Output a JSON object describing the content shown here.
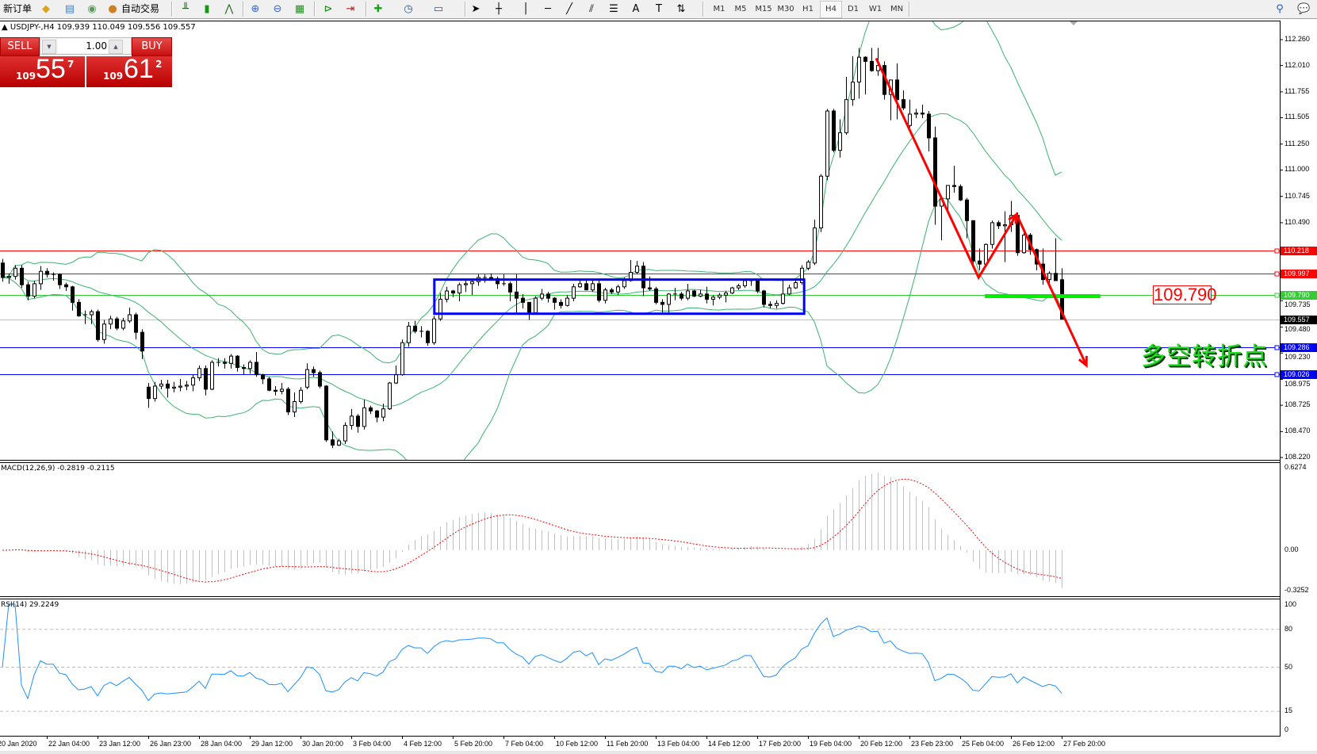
{
  "toolbar": {
    "new_order": "新订单",
    "auto_trade": "自动交易",
    "icons": [
      "market-watch-icon",
      "navigator-icon",
      "signals-icon",
      "bar-chart-icon",
      "candlestick-icon",
      "line-chart-icon",
      "zoom-in-icon",
      "zoom-out-icon",
      "tile-windows-icon",
      "chart-shift-icon",
      "autoscroll-icon",
      "indicators-icon",
      "periods-icon",
      "templates-icon",
      "cursor-icon",
      "crosshair-icon",
      "vertical-line-icon",
      "horizontal-line-icon",
      "trendline-icon",
      "equidistant-channel-icon",
      "fibonacci-icon",
      "text-icon",
      "text-label-icon",
      "arrows-icon"
    ],
    "timeframes": [
      "M1",
      "M5",
      "M15",
      "M30",
      "H1",
      "H4",
      "D1",
      "W1",
      "MN"
    ],
    "active_timeframe": "H4"
  },
  "symbol_line": "USDJPY-,H4  109.939 110.049 109.556 109.557",
  "trade_panel": {
    "sell_label": "SELL",
    "buy_label": "BUY",
    "lot": "1.00",
    "sell_price": {
      "prefix": "109",
      "big": "55",
      "sup": "7"
    },
    "buy_price": {
      "prefix": "109",
      "big": "61",
      "sup": "2"
    }
  },
  "chart": {
    "price_range": [
      108.22,
      112.26
    ],
    "price_axis_labels": [
      "112.260",
      "112.010",
      "111.755",
      "111.505",
      "111.250",
      "111.000",
      "110.745",
      "110.490",
      "109.735",
      "109.480",
      "109.230",
      "108.975",
      "108.725",
      "108.470",
      "108.220"
    ],
    "levels": [
      {
        "price": 110.218,
        "label": "110.218",
        "color": "#ff0000"
      },
      {
        "price": 109.997,
        "label": "109.997",
        "color": "#ff0000"
      },
      {
        "price": 109.79,
        "label": "109.790",
        "color": "#32cd32"
      },
      {
        "price": 109.557,
        "label": "109.557",
        "color": "#c0c0c0",
        "marker_color": "#000000"
      },
      {
        "price": 109.286,
        "label": "109.286",
        "color": "#0000ff"
      },
      {
        "price": 109.026,
        "label": "109.026",
        "color": "#0000ff"
      }
    ],
    "range_box": {
      "from_bar": 68.1,
      "to_bar": 126.4,
      "top": 109.94,
      "bottom": 109.61,
      "color": "#0000ff"
    },
    "zigzag": {
      "points": [
        [
          137.75,
          112.08
        ],
        [
          153.9,
          109.96
        ],
        [
          159.9,
          110.57
        ],
        [
          170.9,
          109.11
        ]
      ],
      "color": "#ff0000"
    },
    "support_segment": {
      "from_bar": 154.9,
      "to_bar": 173.1,
      "price": 109.78,
      "color": "#00ee00"
    },
    "price_label": "109.790",
    "annotation": "多空转折点",
    "colors": {
      "bollinger": "#3cb371",
      "bull_body": "#ffffff",
      "bear_body": "#000000",
      "outline": "#000000"
    },
    "bollinger": {
      "period": 20,
      "deviation": 2
    },
    "candles": [
      [
        110.1,
        110.14,
        109.92,
        109.96
      ],
      [
        109.96,
        110.0,
        109.9,
        109.97
      ],
      [
        109.97,
        110.08,
        109.94,
        110.05
      ],
      [
        110.05,
        110.08,
        109.86,
        109.89
      ],
      [
        109.89,
        109.92,
        109.74,
        109.78
      ],
      [
        109.78,
        109.93,
        109.76,
        109.9
      ],
      [
        109.9,
        110.07,
        109.84,
        110.02
      ],
      [
        110.02,
        110.05,
        109.96,
        109.99
      ],
      [
        109.99,
        110.01,
        109.93,
        109.99
      ],
      [
        109.99,
        110.0,
        109.85,
        109.89
      ],
      [
        109.89,
        109.91,
        109.83,
        109.87
      ],
      [
        109.87,
        109.88,
        109.64,
        109.72
      ],
      [
        109.72,
        109.75,
        109.58,
        109.59
      ],
      [
        109.6,
        109.64,
        109.51,
        109.6
      ],
      [
        109.6,
        109.65,
        109.51,
        109.63
      ],
      [
        109.63,
        109.65,
        109.34,
        109.36
      ],
      [
        109.36,
        109.55,
        109.32,
        109.51
      ],
      [
        109.51,
        109.59,
        109.46,
        109.56
      ],
      [
        109.56,
        109.58,
        109.45,
        109.47
      ],
      [
        109.47,
        109.57,
        109.45,
        109.54
      ],
      [
        109.54,
        109.67,
        109.52,
        109.6
      ],
      [
        109.6,
        109.62,
        109.36,
        109.43
      ],
      [
        109.43,
        109.46,
        109.17,
        109.25
      ],
      [
        108.9,
        108.94,
        108.7,
        108.79
      ],
      [
        108.79,
        108.95,
        108.76,
        108.91
      ],
      [
        108.91,
        108.97,
        108.88,
        108.93
      ],
      [
        108.93,
        108.97,
        108.8,
        108.89
      ],
      [
        108.89,
        108.95,
        108.85,
        108.9
      ],
      [
        108.9,
        108.98,
        108.86,
        108.91
      ],
      [
        108.91,
        108.96,
        108.87,
        108.92
      ],
      [
        108.92,
        109.02,
        108.86,
        108.99
      ],
      [
        108.99,
        109.11,
        108.96,
        109.08
      ],
      [
        109.08,
        109.11,
        108.82,
        108.88
      ],
      [
        108.88,
        109.16,
        108.87,
        109.14
      ],
      [
        109.14,
        109.18,
        109.1,
        109.14
      ],
      [
        109.14,
        109.18,
        109.08,
        109.13
      ],
      [
        109.13,
        109.22,
        109.08,
        109.2
      ],
      [
        109.2,
        109.21,
        109.05,
        109.09
      ],
      [
        109.09,
        109.12,
        109.02,
        109.08
      ],
      [
        109.08,
        109.16,
        109.03,
        109.14
      ],
      [
        109.14,
        109.24,
        109.0,
        109.02
      ],
      [
        109.02,
        109.03,
        108.93,
        108.98
      ],
      [
        108.98,
        109.0,
        108.86,
        108.87
      ],
      [
        108.87,
        108.91,
        108.82,
        108.86
      ],
      [
        108.86,
        108.94,
        108.83,
        108.88
      ],
      [
        108.88,
        108.9,
        108.63,
        108.66
      ],
      [
        108.66,
        108.85,
        108.61,
        108.76
      ],
      [
        108.76,
        108.9,
        108.74,
        108.87
      ],
      [
        108.9,
        109.13,
        108.88,
        109.07
      ],
      [
        109.07,
        109.1,
        109.0,
        109.04
      ],
      [
        109.04,
        109.06,
        108.89,
        108.91
      ],
      [
        108.91,
        108.92,
        108.37,
        108.39
      ],
      [
        108.39,
        108.47,
        108.31,
        108.34
      ],
      [
        108.34,
        108.4,
        108.33,
        108.38
      ],
      [
        108.38,
        108.56,
        108.35,
        108.53
      ],
      [
        108.53,
        108.69,
        108.49,
        108.62
      ],
      [
        108.62,
        108.64,
        108.46,
        108.52
      ],
      [
        108.52,
        108.78,
        108.49,
        108.7
      ],
      [
        108.7,
        108.72,
        108.64,
        108.67
      ],
      [
        108.67,
        108.68,
        108.56,
        108.61
      ],
      [
        108.61,
        108.74,
        108.57,
        108.69
      ],
      [
        108.69,
        108.95,
        108.68,
        108.94
      ],
      [
        108.94,
        109.11,
        108.93,
        109.02
      ],
      [
        109.02,
        109.36,
        109.01,
        109.33
      ],
      [
        109.33,
        109.53,
        109.29,
        109.49
      ],
      [
        109.49,
        109.54,
        109.42,
        109.44
      ],
      [
        109.44,
        109.49,
        109.38,
        109.44
      ],
      [
        109.44,
        109.45,
        109.3,
        109.33
      ],
      [
        109.33,
        109.59,
        109.31,
        109.56
      ],
      [
        109.56,
        109.81,
        109.54,
        109.75
      ],
      [
        109.75,
        109.87,
        109.72,
        109.83
      ],
      [
        109.83,
        109.84,
        109.77,
        109.81
      ],
      [
        109.81,
        109.91,
        109.73,
        109.89
      ],
      [
        109.89,
        109.93,
        109.82,
        109.9
      ],
      [
        109.9,
        109.95,
        109.79,
        109.92
      ],
      [
        109.92,
        109.99,
        109.88,
        109.96
      ],
      [
        109.96,
        109.99,
        109.91,
        109.96
      ],
      [
        109.96,
        110.0,
        109.93,
        109.95
      ],
      [
        109.95,
        109.97,
        109.85,
        109.9
      ],
      [
        109.9,
        109.99,
        109.88,
        109.9
      ],
      [
        109.9,
        109.92,
        109.73,
        109.82
      ],
      [
        109.82,
        109.99,
        109.6,
        109.76
      ],
      [
        109.76,
        109.8,
        109.66,
        109.72
      ],
      [
        109.72,
        109.72,
        109.55,
        109.62
      ],
      [
        109.62,
        109.78,
        109.6,
        109.76
      ],
      [
        109.76,
        109.85,
        109.74,
        109.8
      ],
      [
        109.8,
        109.82,
        109.72,
        109.76
      ],
      [
        109.76,
        109.77,
        109.65,
        109.72
      ],
      [
        109.72,
        109.75,
        109.66,
        109.69
      ],
      [
        109.69,
        109.79,
        109.68,
        109.76
      ],
      [
        109.76,
        109.9,
        109.73,
        109.87
      ],
      [
        109.87,
        109.93,
        109.86,
        109.9
      ],
      [
        109.9,
        109.93,
        109.84,
        109.84
      ],
      [
        109.84,
        109.93,
        109.82,
        109.9
      ],
      [
        109.9,
        109.93,
        109.72,
        109.74
      ],
      [
        109.74,
        109.86,
        109.71,
        109.84
      ],
      [
        109.84,
        109.86,
        109.8,
        109.82
      ],
      [
        109.82,
        109.89,
        109.79,
        109.87
      ],
      [
        109.87,
        109.96,
        109.85,
        109.93
      ],
      [
        109.93,
        110.13,
        109.92,
        110.01
      ],
      [
        110.01,
        110.12,
        109.99,
        110.07
      ],
      [
        110.07,
        110.11,
        109.78,
        109.86
      ],
      [
        109.86,
        109.97,
        109.83,
        109.85
      ],
      [
        109.85,
        109.87,
        109.7,
        109.72
      ],
      [
        109.72,
        109.75,
        109.62,
        109.7
      ],
      [
        109.7,
        109.81,
        109.62,
        109.8
      ],
      [
        109.8,
        109.86,
        109.74,
        109.8
      ],
      [
        109.8,
        109.82,
        109.74,
        109.76
      ],
      [
        109.76,
        109.9,
        109.74,
        109.83
      ],
      [
        109.83,
        109.84,
        109.77,
        109.78
      ],
      [
        109.78,
        109.84,
        109.77,
        109.8
      ],
      [
        109.8,
        109.87,
        109.71,
        109.75
      ],
      [
        109.75,
        109.79,
        109.69,
        109.77
      ],
      [
        109.77,
        109.81,
        109.75,
        109.79
      ],
      [
        109.79,
        109.83,
        109.72,
        109.81
      ],
      [
        109.81,
        109.87,
        109.8,
        109.86
      ],
      [
        109.86,
        109.9,
        109.84,
        109.88
      ],
      [
        109.88,
        109.95,
        109.86,
        109.93
      ],
      [
        109.93,
        109.95,
        109.88,
        109.93
      ],
      [
        109.93,
        109.95,
        109.81,
        109.83
      ],
      [
        109.83,
        109.84,
        109.67,
        109.7
      ],
      [
        109.7,
        109.73,
        109.66,
        109.69
      ],
      [
        109.69,
        109.74,
        109.66,
        109.71
      ],
      [
        109.71,
        109.93,
        109.7,
        109.8
      ],
      [
        109.8,
        109.89,
        109.79,
        109.86
      ],
      [
        109.86,
        109.94,
        109.85,
        109.91
      ],
      [
        109.91,
        110.08,
        109.89,
        110.05
      ],
      [
        110.05,
        110.13,
        110.03,
        110.11
      ],
      [
        110.1,
        110.52,
        110.08,
        110.44
      ],
      [
        110.44,
        110.96,
        110.4,
        110.94
      ],
      [
        110.94,
        111.59,
        110.9,
        111.57
      ],
      [
        111.57,
        111.59,
        111.17,
        111.19
      ],
      [
        111.19,
        111.49,
        111.12,
        111.36
      ],
      [
        111.36,
        111.9,
        111.34,
        111.68
      ],
      [
        111.68,
        112.1,
        111.62,
        111.85
      ],
      [
        111.85,
        112.18,
        111.69,
        112.09
      ],
      [
        112.09,
        112.1,
        111.73,
        112.05
      ],
      [
        112.05,
        112.18,
        111.95,
        111.96
      ],
      [
        111.96,
        112.18,
        111.91,
        112.01
      ],
      [
        112.01,
        112.05,
        111.68,
        111.73
      ],
      [
        111.73,
        111.87,
        111.48,
        111.87
      ],
      [
        111.87,
        112.03,
        111.49,
        111.68
      ],
      [
        111.68,
        111.77,
        111.58,
        111.6
      ],
      [
        111.43,
        111.68,
        111.41,
        111.54
      ],
      [
        111.54,
        111.59,
        111.5,
        111.55
      ],
      [
        111.55,
        111.63,
        111.5,
        111.54
      ],
      [
        111.54,
        111.57,
        111.18,
        111.31
      ],
      [
        111.31,
        111.42,
        110.47,
        110.65
      ],
      [
        110.65,
        110.73,
        110.32,
        110.72
      ],
      [
        110.72,
        110.85,
        110.61,
        110.85
      ],
      [
        110.85,
        111.04,
        110.78,
        110.84
      ],
      [
        110.84,
        110.86,
        110.7,
        110.71
      ],
      [
        110.71,
        110.73,
        110.34,
        110.51
      ],
      [
        110.51,
        110.51,
        110.09,
        110.12
      ],
      [
        110.12,
        110.24,
        110.03,
        110.09
      ],
      [
        110.09,
        110.29,
        110.08,
        110.28
      ],
      [
        110.28,
        110.51,
        110.24,
        110.49
      ],
      [
        110.49,
        110.51,
        110.43,
        110.46
      ],
      [
        110.46,
        110.6,
        110.11,
        110.47
      ],
      [
        110.47,
        110.7,
        110.4,
        110.56
      ],
      [
        110.56,
        110.59,
        110.17,
        110.2
      ],
      [
        110.2,
        110.39,
        110.19,
        110.37
      ],
      [
        110.37,
        110.39,
        110.18,
        110.23
      ],
      [
        110.23,
        110.24,
        110.03,
        110.09
      ],
      [
        110.09,
        110.24,
        109.89,
        109.94
      ],
      [
        109.94,
        110.02,
        109.86,
        110.0
      ],
      [
        110.0,
        110.34,
        109.94,
        109.93
      ],
      [
        109.939,
        110.049,
        109.556,
        109.557
      ]
    ]
  },
  "macd": {
    "label": "MACD(12,26,9) -0.2819 -0.2115",
    "axis_labels": [
      "0.6274",
      "0.00",
      "-0.3252"
    ],
    "range": [
      -0.3252,
      0.6274
    ],
    "params": [
      12,
      26,
      9
    ],
    "colors": {
      "histogram": "#c0c0c0",
      "signal": "#ff0000"
    }
  },
  "rsi": {
    "label": "RSI(14) 29.2249",
    "axis_labels": [
      "100",
      "80",
      "50",
      "15",
      "0"
    ],
    "levels": [
      80,
      50,
      15
    ],
    "period": 14,
    "color": "#1e90ff"
  },
  "time_axis": {
    "labels": [
      "20 Jan 2020",
      "22 Jan 04:00",
      "23 Jan 12:00",
      "26 Jan 23:00",
      "28 Jan 04:00",
      "29 Jan 12:00",
      "30 Jan 20:00",
      "3 Feb 04:00",
      "4 Feb 12:00",
      "5 Feb 20:00",
      "7 Feb 04:00",
      "10 Feb 12:00",
      "11 Feb 20:00",
      "13 Feb 04:00",
      "14 Feb 12:00",
      "17 Feb 20:00",
      "19 Feb 04:00",
      "20 Feb 12:00",
      "23 Feb 23:00",
      "25 Feb 04:00",
      "26 Feb 12:00",
      "27 Feb 20:00"
    ]
  }
}
